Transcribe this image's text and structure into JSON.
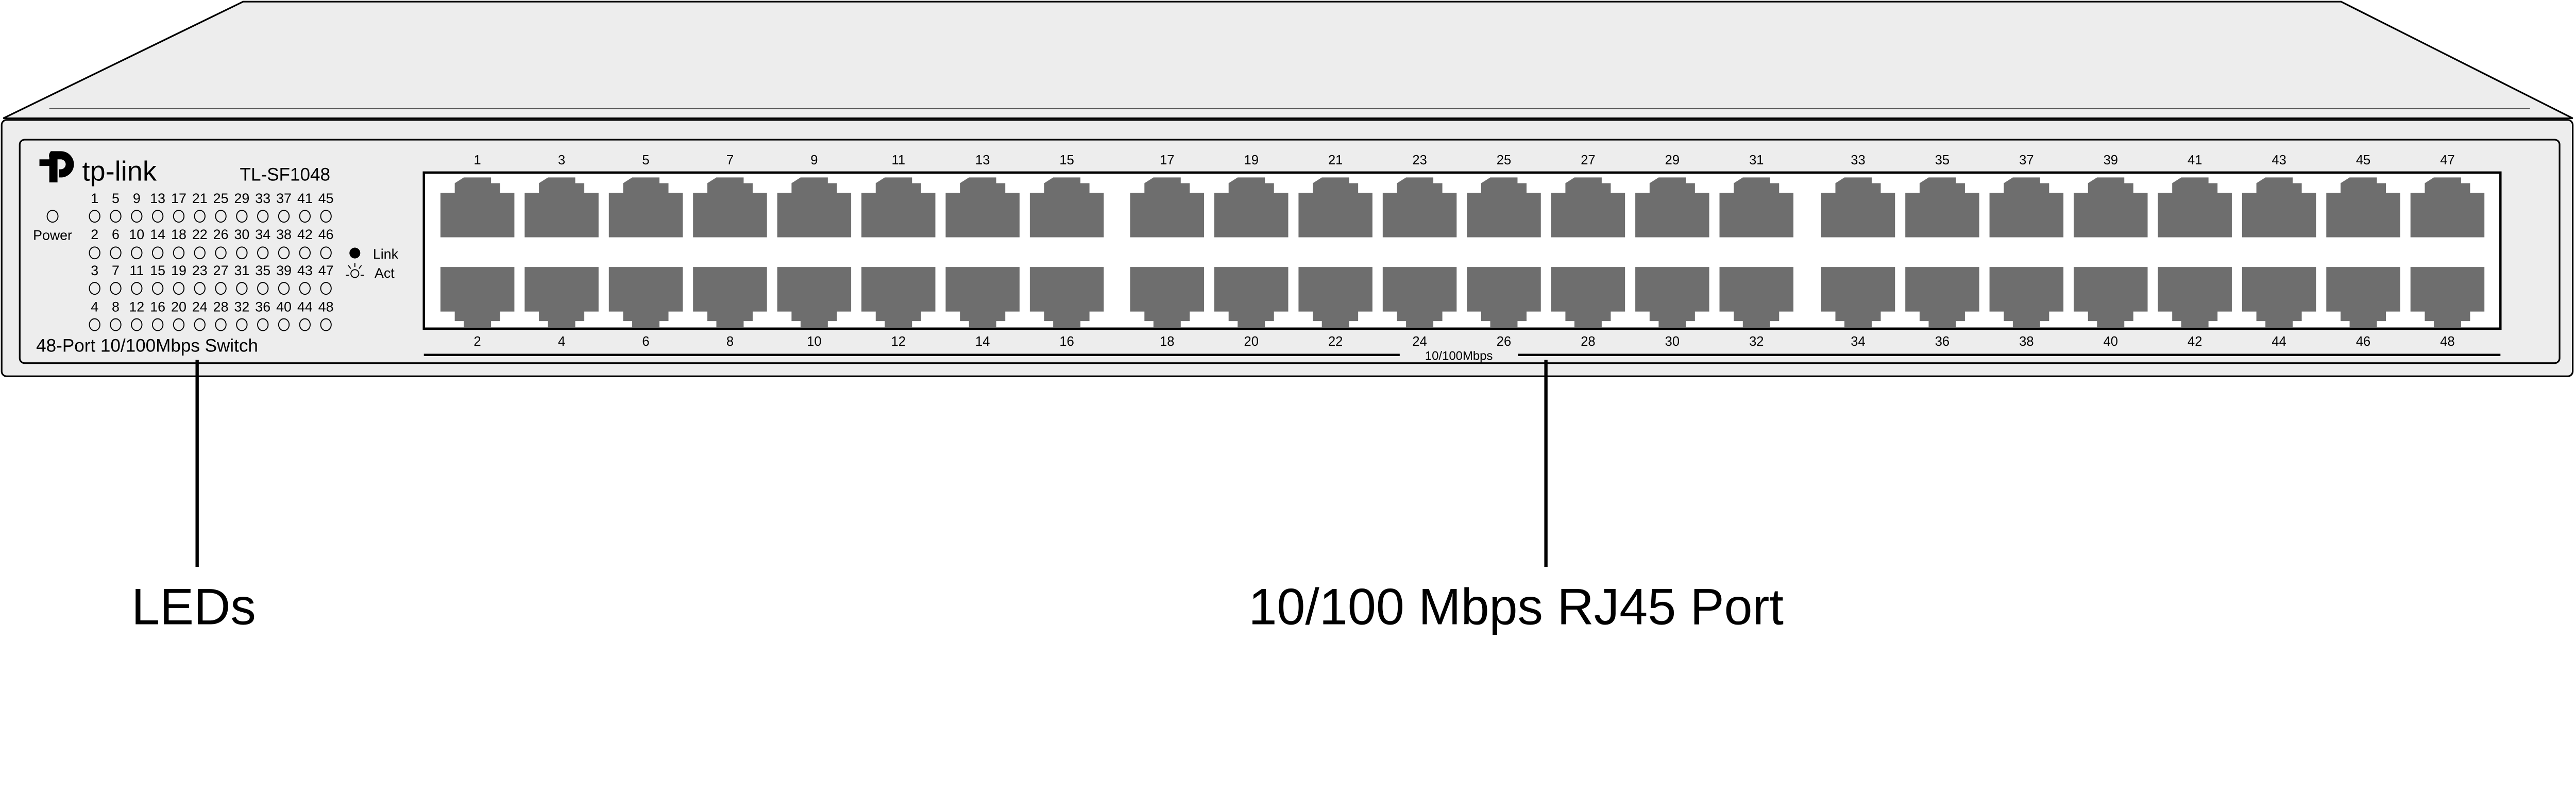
{
  "device": {
    "brand": "tp-link",
    "model": "TL-SF1048",
    "description": "48-Port 10/100Mbps Switch",
    "power_label": "Power",
    "legend": {
      "link": "Link",
      "act": "Act"
    },
    "speed_label": "10/100Mbps",
    "led_rows": [
      [
        "1",
        "5",
        "9",
        "13",
        "17",
        "21",
        "25",
        "29",
        "33",
        "37",
        "41",
        "45"
      ],
      [
        "2",
        "6",
        "10",
        "14",
        "18",
        "22",
        "26",
        "30",
        "34",
        "38",
        "42",
        "46"
      ],
      [
        "3",
        "7",
        "11",
        "15",
        "19",
        "23",
        "27",
        "31",
        "35",
        "39",
        "43",
        "47"
      ],
      [
        "4",
        "8",
        "12",
        "16",
        "20",
        "24",
        "28",
        "32",
        "36",
        "40",
        "44",
        "48"
      ]
    ],
    "ports_top": [
      "1",
      "3",
      "5",
      "7",
      "9",
      "11",
      "13",
      "15",
      "17",
      "19",
      "21",
      "23",
      "25",
      "27",
      "29",
      "31",
      "33",
      "35",
      "37",
      "39",
      "41",
      "43",
      "45",
      "47"
    ],
    "ports_bottom": [
      "2",
      "4",
      "6",
      "8",
      "10",
      "12",
      "14",
      "16",
      "18",
      "20",
      "22",
      "24",
      "26",
      "28",
      "30",
      "32",
      "34",
      "36",
      "38",
      "40",
      "42",
      "44",
      "46",
      "48"
    ]
  },
  "callouts": {
    "leds": "LEDs",
    "ports": "10/100 Mbps RJ45 Port"
  },
  "colors": {
    "chassis": "#ededed",
    "port": "#6e6e6e",
    "port_panel": "#ffffff",
    "outline": "#000000"
  }
}
